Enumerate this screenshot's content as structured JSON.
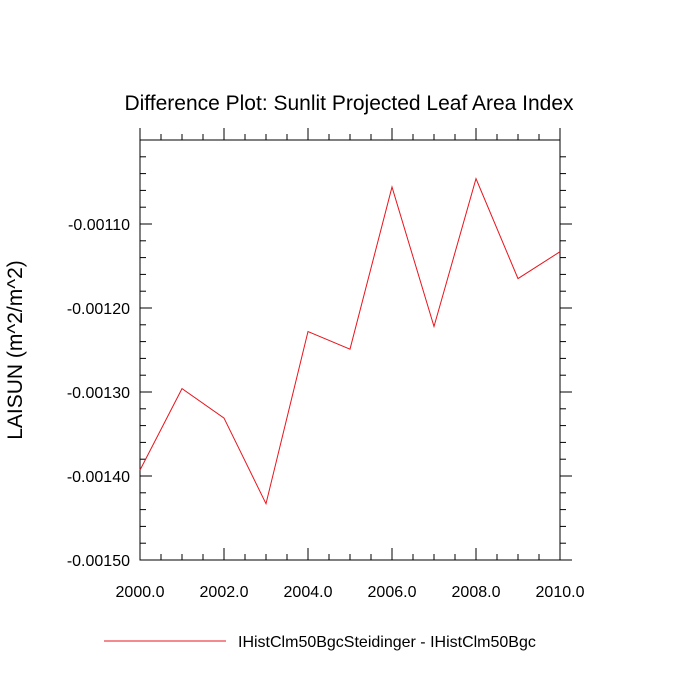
{
  "chart_data": {
    "type": "line",
    "title": "Difference Plot: Sunlit Projected Leaf Area Index",
    "xlabel": "",
    "ylabel": "LAISUN  (m^2/m^2)",
    "xlim": [
      2000,
      2010
    ],
    "ylim": [
      -0.0015,
      -0.001
    ],
    "x_ticks": [
      2000,
      2002,
      2004,
      2006,
      2008,
      2010
    ],
    "x_tick_labels": [
      "2000.0",
      "2002.0",
      "2004.0",
      "2006.0",
      "2008.0",
      "2010.0"
    ],
    "y_ticks": [
      -0.0011,
      -0.0012,
      -0.0013,
      -0.0014,
      -0.0015
    ],
    "y_tick_labels": [
      "-0.00110",
      "-0.00120",
      "-0.00130",
      "-0.00140",
      "-0.00150"
    ],
    "grid": false,
    "legend_position": "bottom",
    "series": [
      {
        "name": "IHistClm50BgcSteidinger - IHistClm50Bgc",
        "color": "#e8141c",
        "x": [
          2000,
          2001,
          2002,
          2003,
          2004,
          2005,
          2006,
          2007,
          2008,
          2009,
          2010
        ],
        "y": [
          -0.001393,
          -0.001296,
          -0.001331,
          -0.001433,
          -0.001228,
          -0.001249,
          -0.001056,
          -0.001222,
          -0.001046,
          -0.001165,
          -0.001133
        ]
      }
    ]
  }
}
